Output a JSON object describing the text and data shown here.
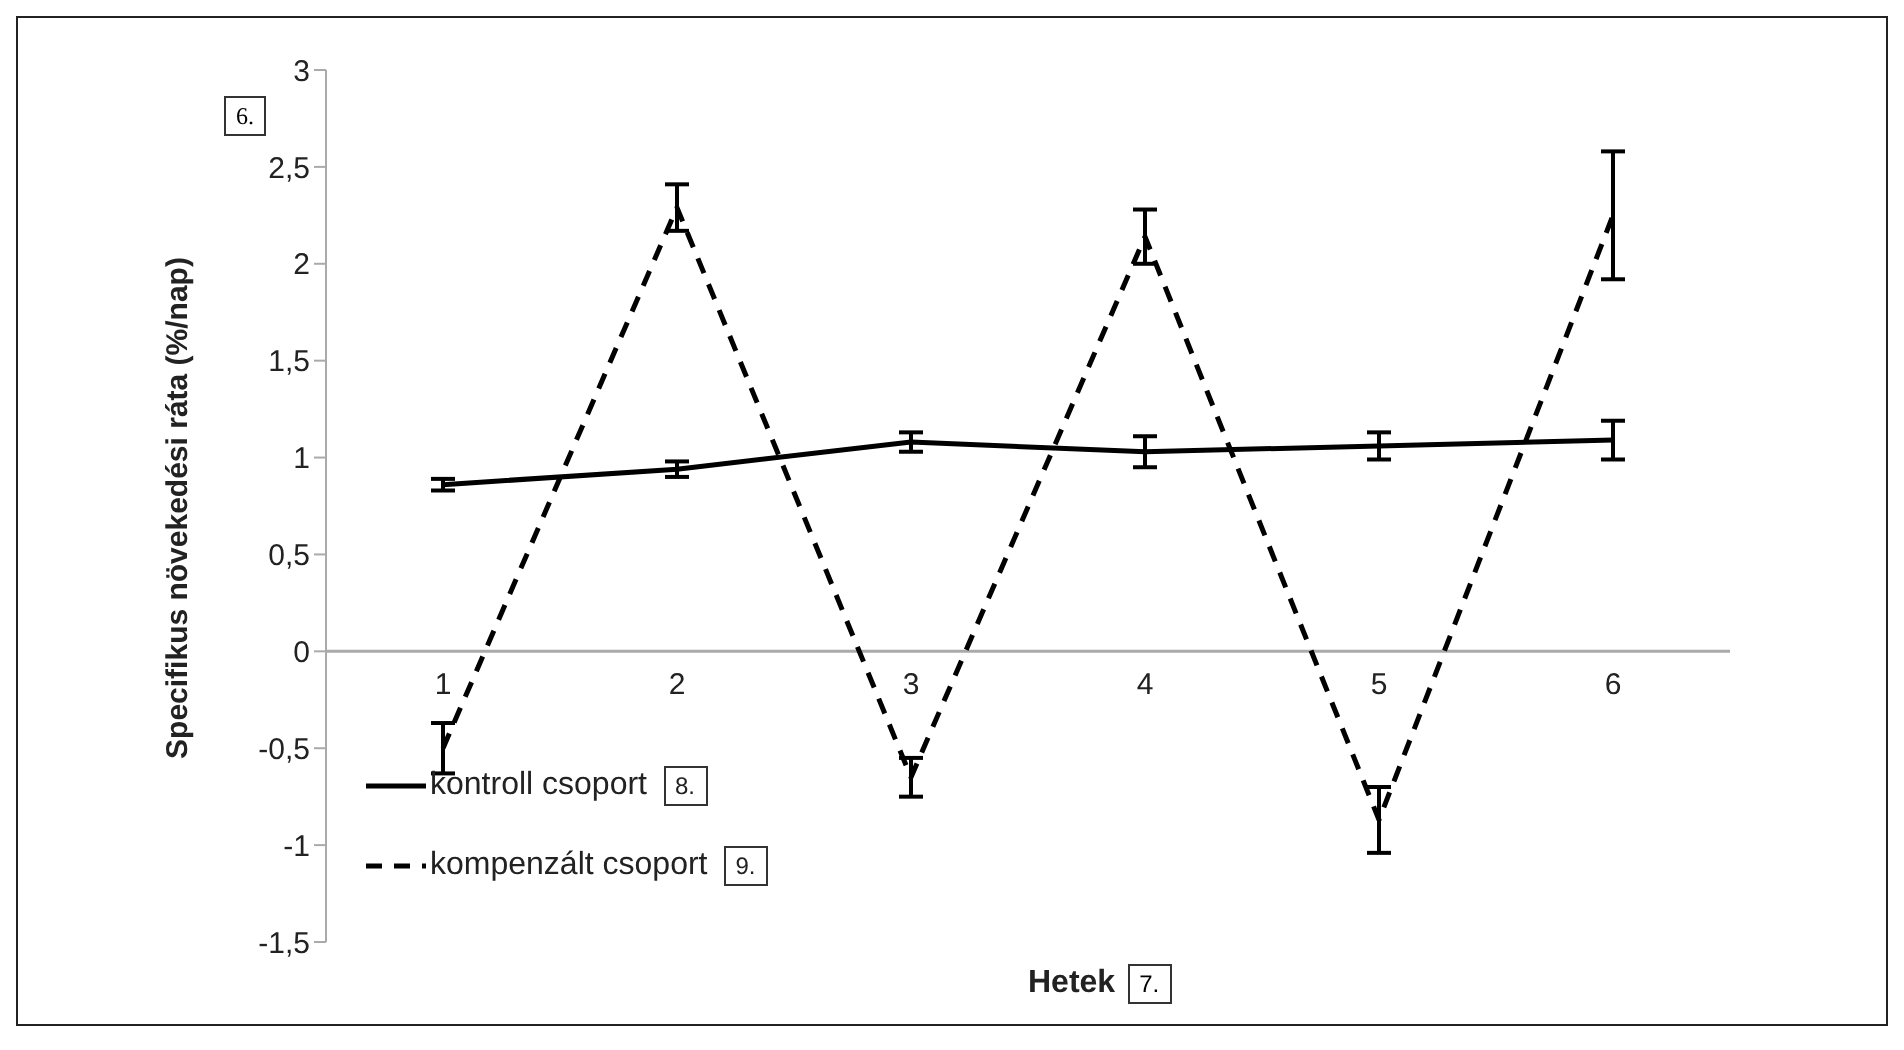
{
  "chart_data": {
    "type": "line",
    "xlabel": "Hetek",
    "ylabel": "Specifikus növekedési ráta (%/nap)",
    "categories": [
      "1",
      "2",
      "3",
      "4",
      "5",
      "6"
    ],
    "series": [
      {
        "name": "kontroll csoport",
        "color": "#000000",
        "line_style": "solid",
        "values": [
          0.86,
          0.94,
          1.08,
          1.03,
          1.06,
          1.09
        ],
        "errors": [
          0.03,
          0.04,
          0.05,
          0.08,
          0.07,
          0.1
        ]
      },
      {
        "name": "kompenzált csoport",
        "color": "#000000",
        "line_style": "dashed",
        "values": [
          -0.5,
          2.29,
          -0.65,
          2.14,
          -0.87,
          2.25
        ],
        "errors": [
          0.13,
          0.12,
          0.1,
          0.14,
          0.17,
          0.33
        ]
      }
    ],
    "ylim": [
      -1.5,
      3
    ],
    "yticks": [
      {
        "value": -1.5,
        "label": "-1,5"
      },
      {
        "value": -1,
        "label": "-1"
      },
      {
        "value": -0.5,
        "label": "-0,5"
      },
      {
        "value": 0,
        "label": "0"
      },
      {
        "value": 0.5,
        "label": "0,5"
      },
      {
        "value": 1,
        "label": "1"
      },
      {
        "value": 1.5,
        "label": "1,5"
      },
      {
        "value": 2,
        "label": "2"
      },
      {
        "value": 2.5,
        "label": "2,5"
      },
      {
        "value": 3,
        "label": "3"
      }
    ],
    "annotations": [
      "6.",
      "7.",
      "8.",
      "9."
    ],
    "legend": "bottom left",
    "marker": "none",
    "grid": false
  }
}
